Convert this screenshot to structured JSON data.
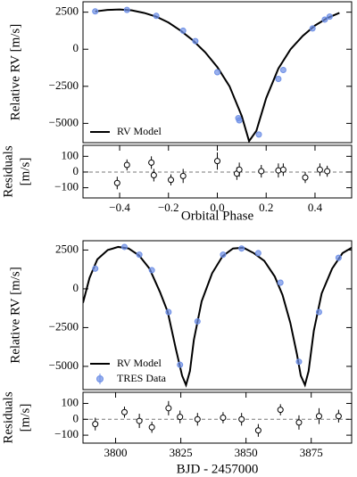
{
  "chart_data": [
    {
      "type": "line",
      "ylabel": "Relative RV [m/s]",
      "xlim": [
        -0.55,
        0.55
      ],
      "ylim": [
        -6300,
        3200
      ],
      "yticks": [
        {
          "value": -5000,
          "label": "−5000"
        },
        {
          "value": -2500,
          "label": "−2500"
        },
        0,
        2500
      ],
      "legend": "lower left",
      "series": [
        {
          "name": "RV Model",
          "style": "line",
          "color": "#000000",
          "x": [
            -0.5,
            -0.45,
            -0.4,
            -0.35,
            -0.3,
            -0.25,
            -0.2,
            -0.15,
            -0.1,
            -0.05,
            0,
            0.05,
            0.1,
            0.13,
            0.16,
            0.2,
            0.25,
            0.3,
            0.35,
            0.4,
            0.45,
            0.5
          ],
          "values": [
            2550,
            2650,
            2680,
            2620,
            2450,
            2200,
            1800,
            1250,
            600,
            -200,
            -1200,
            -2500,
            -4500,
            -6200,
            -5500,
            -3300,
            -1300,
            0,
            900,
            1600,
            2100,
            2450
          ]
        },
        {
          "style": "points",
          "color": "#6d8fe6",
          "x": [
            -0.5,
            -0.37,
            -0.25,
            -0.14,
            -0.09,
            0.0,
            0.086,
            0.09,
            0.17,
            0.25,
            0.27,
            0.39,
            0.44,
            0.46
          ],
          "values": [
            2550,
            2650,
            2250,
            1250,
            550,
            -1550,
            -4650,
            -4800,
            -5750,
            -2000,
            -1400,
            1400,
            2000,
            2200
          ]
        }
      ]
    },
    {
      "type": "scatter",
      "ylabel_lines": [
        "Residuals",
        "[m/s]"
      ],
      "xlabel": "Orbital Phase",
      "xlim": [
        -0.55,
        0.55
      ],
      "ylim": [
        -165,
        170
      ],
      "hline": 0,
      "xticks": [
        {
          "value": -0.4,
          "label": "−0.4"
        },
        {
          "value": -0.2,
          "label": "−0.2"
        },
        {
          "value": 0,
          "label": "0.0"
        },
        0.2,
        0.4
      ],
      "yticks": [
        {
          "value": -100,
          "label": "−100"
        },
        0,
        100
      ],
      "series": [
        {
          "style": "points",
          "color": "#000000",
          "marker_fill": "#ffffff",
          "x": [
            -0.41,
            -0.37,
            -0.27,
            -0.26,
            -0.19,
            -0.14,
            0.0,
            0.08,
            0.09,
            0.18,
            0.25,
            0.27,
            0.36,
            0.42,
            0.45
          ],
          "values": [
            -70,
            45,
            60,
            -20,
            -50,
            -25,
            70,
            -10,
            15,
            5,
            10,
            15,
            -35,
            15,
            5
          ],
          "errors": [
            40,
            35,
            40,
            40,
            35,
            45,
            55,
            40,
            45,
            40,
            45,
            40,
            35,
            40,
            35
          ]
        }
      ]
    },
    {
      "type": "line",
      "ylabel": "Relative RV [m/s]",
      "xlim": [
        3787.5,
        3890.5
      ],
      "ylim": [
        -6500,
        3100
      ],
      "yticks": [
        {
          "value": -5000,
          "label": "−5000"
        },
        {
          "value": -2500,
          "label": "−2500"
        },
        0,
        2500
      ],
      "legend": "lower left",
      "series": [
        {
          "name": "RV Model",
          "style": "line",
          "color": "#000000",
          "x": [
            3787.5,
            3790,
            3793,
            3797,
            3801,
            3805,
            3809,
            3813,
            3817,
            3820,
            3823,
            3825.5,
            3827,
            3828.5,
            3830,
            3833,
            3837,
            3841,
            3845,
            3849,
            3853,
            3857,
            3861,
            3864,
            3867,
            3869.5,
            3871,
            3872.6,
            3874,
            3876,
            3879,
            3883,
            3887,
            3890.5
          ],
          "values": [
            -900,
            700,
            1900,
            2500,
            2700,
            2600,
            2150,
            1300,
            -200,
            -1500,
            -3800,
            -5600,
            -6200,
            -5300,
            -3300,
            -800,
            1000,
            2100,
            2600,
            2650,
            2300,
            1800,
            800,
            -400,
            -2200,
            -4200,
            -5600,
            -6200,
            -5300,
            -2700,
            -300,
            1300,
            2300,
            2650
          ]
        },
        {
          "name": "TRES Data",
          "style": "points",
          "color": "#6d8fe6",
          "x": [
            3792.2,
            3803.4,
            3809.1,
            3813.9,
            3820.3,
            3824.7,
            3831.4,
            3841.2,
            3848.3,
            3854.7,
            3863.2,
            3870.3,
            3878.0,
            3885.5
          ],
          "values": [
            1300,
            2700,
            2200,
            1200,
            -1500,
            -4900,
            -2100,
            2200,
            2600,
            2300,
            400,
            -4700,
            -1500,
            2000
          ]
        }
      ]
    },
    {
      "type": "scatter",
      "ylabel_lines": [
        "Residuals",
        "[m/s]"
      ],
      "xlabel": "BJD - 2457000",
      "xlim": [
        3787.5,
        3890.5
      ],
      "ylim": [
        -150,
        170
      ],
      "hline": 0,
      "xticks": [
        3800,
        3825,
        3850,
        3875
      ],
      "yticks": [
        {
          "value": -100,
          "label": "−100"
        },
        0,
        100
      ],
      "series": [
        {
          "style": "points",
          "color": "#000000",
          "marker_fill": "#ffffff",
          "x": [
            3792.2,
            3803.4,
            3809.1,
            3813.9,
            3820.3,
            3824.7,
            3831.4,
            3841.2,
            3848.3,
            3854.7,
            3863.2,
            3870.3,
            3878.0,
            3885.5
          ],
          "values": [
            -30,
            45,
            -10,
            -50,
            70,
            15,
            0,
            10,
            0,
            -70,
            60,
            -20,
            20,
            20
          ],
          "errors": [
            40,
            35,
            45,
            35,
            45,
            40,
            40,
            35,
            40,
            40,
            35,
            45,
            50,
            40
          ]
        }
      ]
    }
  ]
}
